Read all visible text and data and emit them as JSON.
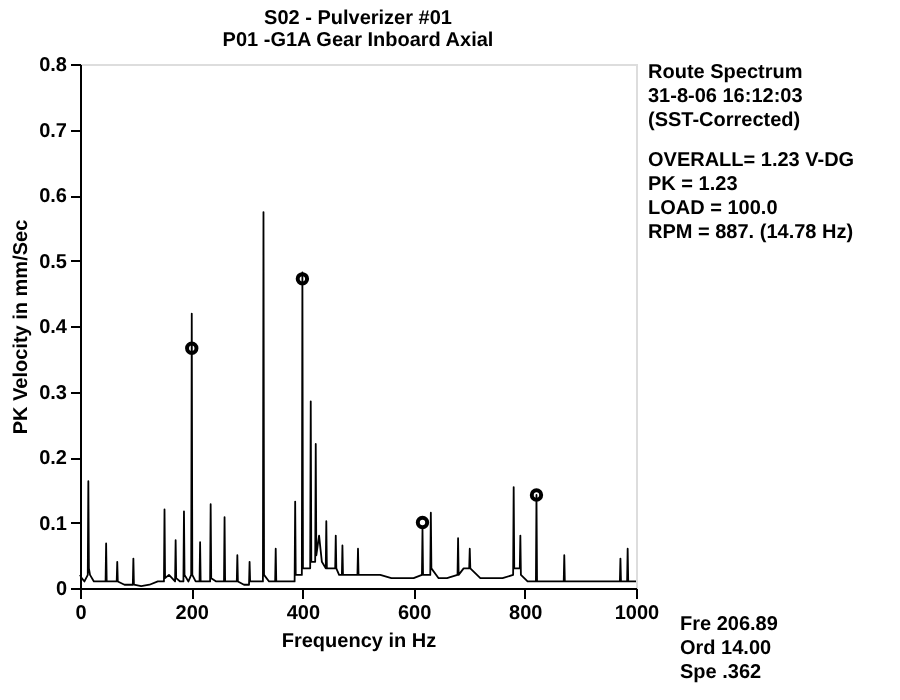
{
  "chart_data": {
    "type": "line",
    "title": "S02  - Pulverizer #01",
    "subtitle": "P01       -G1A   Gear Inboard Axial",
    "xlabel": "Frequency in Hz",
    "ylabel": "PK Velocity in mm/Sec",
    "xlim": [
      0,
      1000
    ],
    "xticks": [
      0,
      200,
      400,
      600,
      800,
      1000
    ],
    "ylim": [
      0,
      0.8
    ],
    "yticks": [
      0,
      0.1,
      0.2,
      0.3,
      0.4,
      0.5,
      0.6,
      0.7,
      0.8
    ],
    "grid": false,
    "line_style": "solid",
    "x": [
      0,
      3,
      8,
      14,
      15,
      16,
      18,
      25,
      35,
      46,
      47,
      48,
      55,
      66,
      67,
      68,
      80,
      95,
      96,
      97,
      110,
      125,
      140,
      151,
      152,
      153,
      160,
      171,
      172,
      173,
      180,
      186,
      187,
      188,
      195,
      200,
      201,
      202,
      208,
      215,
      216,
      217,
      225,
      234,
      235,
      236,
      245,
      259,
      260,
      261,
      270,
      282,
      283,
      284,
      295,
      304,
      305,
      306,
      318,
      329,
      330,
      331,
      340,
      351,
      352,
      353,
      365,
      386,
      387,
      388,
      394,
      399,
      400,
      401,
      408,
      414,
      415,
      416,
      419,
      423,
      424,
      425,
      430,
      435,
      442,
      443,
      444,
      450,
      459,
      460,
      461,
      466,
      471,
      472,
      473,
      485,
      499,
      500,
      501,
      520,
      540,
      560,
      580,
      600,
      615,
      616,
      617,
      622,
      630,
      631,
      632,
      645,
      660,
      679,
      680,
      681,
      690,
      700,
      701,
      702,
      720,
      740,
      760,
      779,
      780,
      781,
      786,
      791,
      792,
      793,
      805,
      820,
      821,
      822,
      840,
      860,
      870,
      871,
      872,
      890,
      910,
      930,
      950,
      971,
      972,
      973,
      984,
      985,
      986,
      995,
      1000
    ],
    "series": [
      {
        "color": "#000000",
        "values": [
          0.02,
          0.015,
          0.01,
          0.02,
          0.163,
          0.03,
          0.02,
          0.01,
          0.01,
          0.01,
          0.068,
          0.01,
          0.01,
          0.01,
          0.04,
          0.01,
          0.005,
          0.005,
          0.045,
          0.005,
          0.003,
          0.005,
          0.01,
          0.01,
          0.12,
          0.015,
          0.02,
          0.01,
          0.073,
          0.015,
          0.01,
          0.01,
          0.117,
          0.02,
          0.01,
          0.02,
          0.419,
          0.02,
          0.01,
          0.01,
          0.07,
          0.01,
          0.01,
          0.01,
          0.128,
          0.015,
          0.01,
          0.01,
          0.108,
          0.01,
          0.01,
          0.01,
          0.05,
          0.01,
          0.005,
          0.005,
          0.04,
          0.01,
          0.01,
          0.01,
          0.574,
          0.02,
          0.01,
          0.01,
          0.06,
          0.01,
          0.01,
          0.01,
          0.132,
          0.02,
          0.02,
          0.02,
          0.482,
          0.03,
          0.03,
          0.03,
          0.285,
          0.04,
          0.04,
          0.04,
          0.22,
          0.05,
          0.08,
          0.04,
          0.03,
          0.102,
          0.03,
          0.03,
          0.03,
          0.08,
          0.03,
          0.02,
          0.02,
          0.065,
          0.02,
          0.02,
          0.02,
          0.06,
          0.02,
          0.02,
          0.02,
          0.015,
          0.015,
          0.015,
          0.02,
          0.09,
          0.02,
          0.02,
          0.02,
          0.115,
          0.03,
          0.015,
          0.015,
          0.02,
          0.076,
          0.02,
          0.03,
          0.03,
          0.06,
          0.03,
          0.015,
          0.015,
          0.015,
          0.02,
          0.154,
          0.03,
          0.03,
          0.03,
          0.08,
          0.02,
          0.01,
          0.01,
          0.142,
          0.01,
          0.01,
          0.01,
          0.01,
          0.05,
          0.01,
          0.01,
          0.01,
          0.01,
          0.01,
          0.01,
          0.045,
          0.01,
          0.01,
          0.06,
          0.01,
          0.01,
          0.01
        ]
      },
      {
        "type": "scatter",
        "marker": "circle",
        "color": "#000000",
        "x": [
          201,
          400,
          616,
          821
        ],
        "values": [
          0.366,
          0.472,
          0.1,
          0.142
        ]
      }
    ],
    "annotations": [
      "Route Spectrum",
      "  31-8-06    16:12:03",
      "(SST-Corrected)",
      "OVERALL= 1.23 V-DG",
      "  PK  =  1.23",
      "  LOAD = 100.0",
      "  RPM = 887. (14.78 Hz)",
      "Fre   206.89",
      "Ord   14.00",
      "Spe    .362"
    ]
  }
}
